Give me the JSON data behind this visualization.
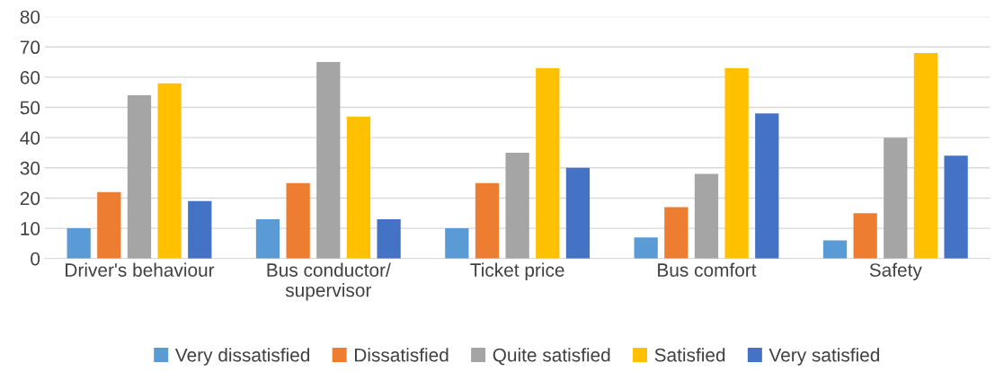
{
  "chart_data": {
    "type": "bar",
    "categories": [
      "Driver's behaviour",
      "Bus conductor/\nsupervisor",
      "Ticket price",
      "Bus comfort",
      "Safety"
    ],
    "series": [
      {
        "name": "Very dissatisfied",
        "color": "#5b9bd5",
        "values": [
          10,
          13,
          10,
          7,
          6
        ]
      },
      {
        "name": "Dissatisfied",
        "color": "#ed7d31",
        "values": [
          22,
          25,
          25,
          17,
          15
        ]
      },
      {
        "name": "Quite satisfied",
        "color": "#a5a5a5",
        "values": [
          54,
          65,
          35,
          28,
          40
        ]
      },
      {
        "name": "Satisfied",
        "color": "#ffc000",
        "values": [
          58,
          47,
          63,
          63,
          68
        ]
      },
      {
        "name": "Very satisfied",
        "color": "#4472c4",
        "values": [
          19,
          13,
          30,
          48,
          34
        ]
      }
    ],
    "ylim": [
      0,
      80
    ],
    "yticks": [
      0,
      10,
      20,
      30,
      40,
      50,
      60,
      70,
      80
    ],
    "grid": "y",
    "legend": "bottom"
  }
}
